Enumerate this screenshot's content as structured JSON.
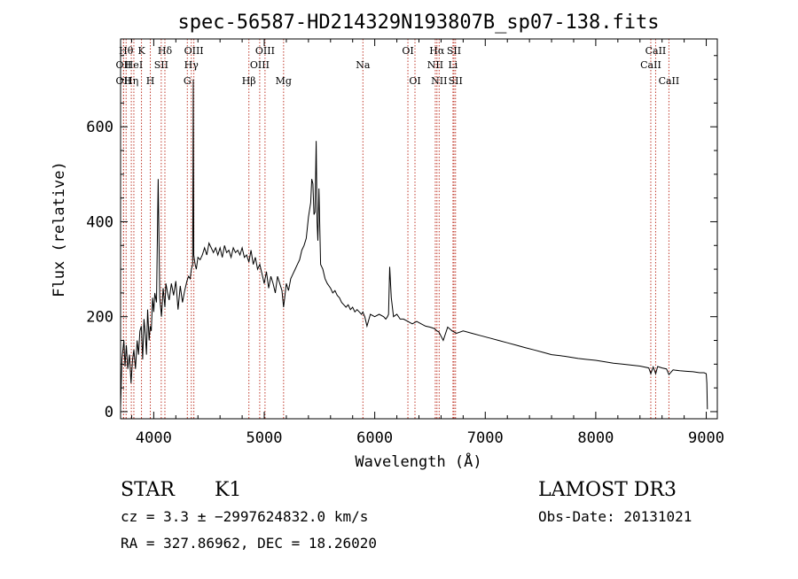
{
  "chart_data": {
    "type": "line",
    "title": "spec-56587-HD214329N193807B_sp07-138.fits",
    "xlabel": "Wavelength (Å)",
    "ylabel": "Flux (relative)",
    "xlim": [
      3700,
      9100
    ],
    "ylim": [
      -15,
      785
    ],
    "xticks": [
      4000,
      5000,
      6000,
      7000,
      8000,
      9000
    ],
    "xtick_labels": [
      "4000",
      "5000",
      "6000",
      "7000",
      "8000",
      "9000"
    ],
    "yticks": [
      0,
      200,
      400,
      600
    ],
    "ytick_labels": [
      "0",
      "200",
      "400",
      "600"
    ],
    "grid": false,
    "spectrum": {
      "x": [
        3700,
        3712,
        3730,
        3740,
        3752,
        3765,
        3780,
        3795,
        3808,
        3820,
        3835,
        3850,
        3862,
        3875,
        3888,
        3900,
        3912,
        3925,
        3934,
        3945,
        3958,
        3968,
        3978,
        3990,
        4000,
        4010,
        4025,
        4040,
        4055,
        4070,
        4085,
        4101,
        4110,
        4125,
        4140,
        4160,
        4180,
        4200,
        4220,
        4240,
        4260,
        4280,
        4300,
        4315,
        4330,
        4340,
        4352,
        4358,
        4362,
        4368,
        4375,
        4385,
        4400,
        4420,
        4440,
        4460,
        4480,
        4500,
        4520,
        4540,
        4560,
        4580,
        4600,
        4620,
        4640,
        4660,
        4680,
        4700,
        4720,
        4740,
        4760,
        4780,
        4800,
        4820,
        4840,
        4861,
        4880,
        4900,
        4920,
        4940,
        4960,
        4980,
        5000,
        5020,
        5040,
        5060,
        5080,
        5100,
        5120,
        5140,
        5160,
        5175,
        5185,
        5200,
        5220,
        5240,
        5260,
        5280,
        5300,
        5320,
        5340,
        5360,
        5380,
        5400,
        5420,
        5430,
        5440,
        5450,
        5460,
        5470,
        5478,
        5485,
        5495,
        5510,
        5530,
        5550,
        5570,
        5600,
        5620,
        5640,
        5660,
        5680,
        5700,
        5720,
        5740,
        5760,
        5780,
        5800,
        5820,
        5840,
        5860,
        5880,
        5893,
        5900,
        5910,
        5930,
        5960,
        6000,
        6040,
        6080,
        6100,
        6115,
        6125,
        6135,
        6150,
        6170,
        6200,
        6230,
        6260,
        6300,
        6340,
        6380,
        6420,
        6460,
        6500,
        6540,
        6563,
        6580,
        6620,
        6660,
        6700,
        6740,
        6800,
        6880,
        6960,
        7040,
        7120,
        7200,
        7280,
        7360,
        7440,
        7520,
        7600,
        7680,
        7760,
        7840,
        7920,
        8000,
        8080,
        8160,
        8240,
        8320,
        8400,
        8480,
        8498,
        8520,
        8542,
        8560,
        8600,
        8640,
        8662,
        8700,
        8760,
        8820,
        8880,
        8940,
        8980,
        9000,
        9005,
        9010
      ],
      "y": [
        10,
        110,
        150,
        95,
        140,
        90,
        120,
        60,
        110,
        130,
        90,
        150,
        120,
        170,
        180,
        110,
        195,
        160,
        120,
        215,
        150,
        180,
        170,
        240,
        210,
        250,
        230,
        490,
        240,
        200,
        260,
        220,
        270,
        250,
        235,
        270,
        245,
        275,
        215,
        265,
        230,
        255,
        275,
        285,
        280,
        300,
        310,
        700,
        330,
        320,
        310,
        300,
        325,
        320,
        330,
        345,
        330,
        355,
        345,
        335,
        345,
        330,
        345,
        325,
        350,
        335,
        340,
        325,
        345,
        335,
        340,
        330,
        345,
        325,
        330,
        315,
        340,
        310,
        325,
        300,
        310,
        290,
        270,
        295,
        260,
        285,
        270,
        250,
        285,
        270,
        255,
        220,
        240,
        270,
        255,
        280,
        290,
        300,
        310,
        320,
        340,
        350,
        365,
        410,
        440,
        490,
        480,
        415,
        420,
        570,
        400,
        360,
        470,
        310,
        300,
        280,
        270,
        260,
        250,
        255,
        245,
        240,
        230,
        225,
        220,
        225,
        215,
        220,
        210,
        215,
        210,
        205,
        210,
        205,
        200,
        180,
        205,
        200,
        205,
        200,
        195,
        200,
        205,
        305,
        240,
        200,
        205,
        195,
        195,
        190,
        185,
        190,
        185,
        180,
        178,
        175,
        170,
        168,
        150,
        178,
        170,
        165,
        170,
        165,
        160,
        155,
        150,
        145,
        140,
        135,
        130,
        125,
        120,
        118,
        115,
        112,
        110,
        108,
        105,
        102,
        100,
        98,
        96,
        92,
        80,
        94,
        80,
        95,
        92,
        90,
        78,
        88,
        86,
        85,
        84,
        82,
        82,
        80,
        60,
        5
      ]
    },
    "line_markers": [
      {
        "x": 3750,
        "row": 0,
        "label": "Hθ"
      },
      {
        "x": 3727,
        "row": 1,
        "label": "OII"
      },
      {
        "x": 3727,
        "row": 2,
        "label": "OII"
      },
      {
        "x": 3889,
        "row": 0,
        "label": "K"
      },
      {
        "x": 3820,
        "row": 1,
        "label": "HeI"
      },
      {
        "x": 3797,
        "row": 2,
        "label": "Hη"
      },
      {
        "x": 4101,
        "row": 0,
        "label": "Hδ"
      },
      {
        "x": 4068,
        "row": 1,
        "label": "SII"
      },
      {
        "x": 3969,
        "row": 2,
        "label": "H"
      },
      {
        "x": 4363,
        "row": 0,
        "label": "OIII"
      },
      {
        "x": 4340,
        "row": 1,
        "label": "Hγ"
      },
      {
        "x": 4304,
        "row": 2,
        "label": "G"
      },
      {
        "x": 5007,
        "row": 0,
        "label": "OIII"
      },
      {
        "x": 4959,
        "row": 1,
        "label": "OIII"
      },
      {
        "x": 4861,
        "row": 2,
        "label": "Hβ"
      },
      {
        "x": 5175,
        "row": 2,
        "label": "Mg"
      },
      {
        "x": 5893,
        "row": 1,
        "label": "Na"
      },
      {
        "x": 6300,
        "row": 0,
        "label": "OI"
      },
      {
        "x": 6364,
        "row": 2,
        "label": "OI"
      },
      {
        "x": 6563,
        "row": 0,
        "label": "Hα"
      },
      {
        "x": 6548,
        "row": 1,
        "label": "NII"
      },
      {
        "x": 6583,
        "row": 2,
        "label": "NII"
      },
      {
        "x": 6717,
        "row": 0,
        "label": "SII"
      },
      {
        "x": 6708,
        "row": 1,
        "label": "Li"
      },
      {
        "x": 6731,
        "row": 2,
        "label": "SII"
      },
      {
        "x": 8542,
        "row": 0,
        "label": "CaII"
      },
      {
        "x": 8498,
        "row": 1,
        "label": "CaII"
      },
      {
        "x": 8662,
        "row": 2,
        "label": "CaII"
      }
    ]
  },
  "info": {
    "object_class": "STAR",
    "subclass": "K1",
    "survey": "LAMOST DR3",
    "redshift_line": "cz = 3.3 ± −2997624832.0 km/s",
    "obs_date": "Obs-Date: 20131021",
    "coords": "RA = 327.86962, DEC =  18.26020"
  }
}
